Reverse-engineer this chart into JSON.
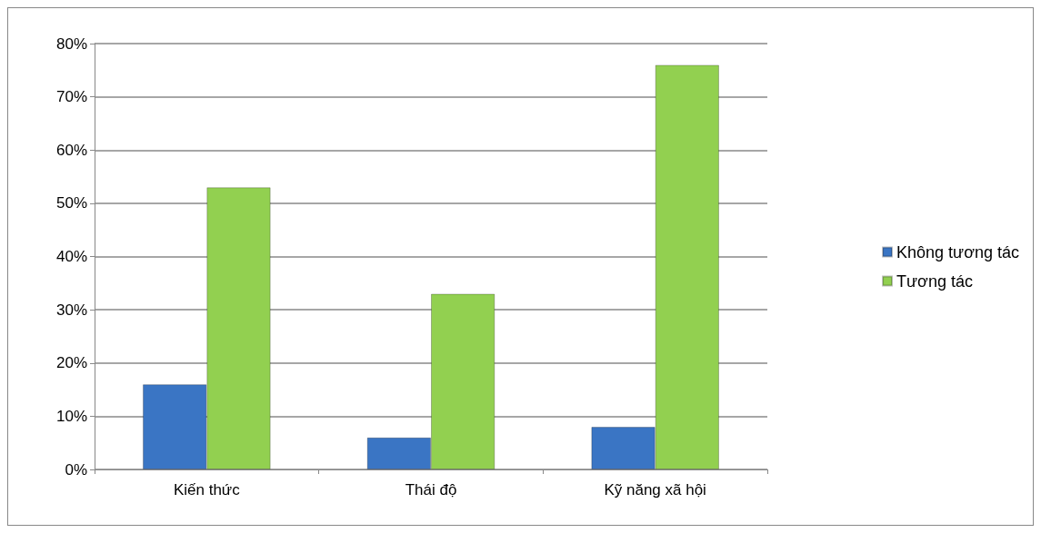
{
  "chart_data": {
    "type": "bar",
    "categories": [
      "Kiến thức",
      "Thái độ",
      "Kỹ năng xã hội"
    ],
    "series": [
      {
        "name": "Không tương tác",
        "color": "#3a75c4",
        "values": [
          16,
          6,
          8
        ]
      },
      {
        "name": "Tương tác",
        "color": "#92d050",
        "values": [
          53,
          33,
          76
        ]
      }
    ],
    "ylim": [
      0,
      80
    ],
    "yticks": [
      {
        "value": 0,
        "label": "0%"
      },
      {
        "value": 10,
        "label": "10%"
      },
      {
        "value": 20,
        "label": "20%"
      },
      {
        "value": 30,
        "label": "30%"
      },
      {
        "value": 40,
        "label": "40%"
      },
      {
        "value": 50,
        "label": "50%"
      },
      {
        "value": 60,
        "label": "60%"
      },
      {
        "value": 70,
        "label": "70%"
      },
      {
        "value": 80,
        "label": "80%"
      }
    ],
    "grid": "y",
    "legend": "right"
  }
}
